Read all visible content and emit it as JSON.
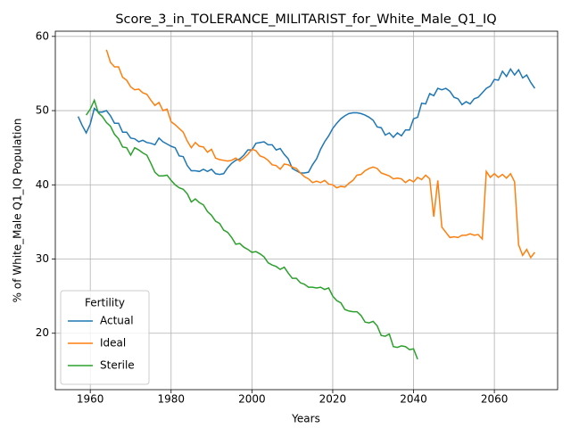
{
  "chart_data": {
    "type": "line",
    "title": "Score_3_in_TOLERANCE_MILITARIST_for_White_Male_Q1_IQ",
    "x_label": "Years",
    "y_label": "% of White_Male Q1_IQ Population",
    "legend_title": "Fertility",
    "legend_position": "lower left",
    "grid": true,
    "x": [
      1957,
      1958,
      1959,
      1960,
      1961,
      1962,
      1963,
      1964,
      1965,
      1966,
      1967,
      1968,
      1969,
      1970,
      1971,
      1972,
      1973,
      1974,
      1975,
      1976,
      1977,
      1978,
      1979,
      1980,
      1981,
      1982,
      1983,
      1984,
      1985,
      1986,
      1987,
      1988,
      1989,
      1990,
      1991,
      1992,
      1993,
      1994,
      1995,
      1996,
      1997,
      1998,
      1999,
      2000,
      2001,
      2002,
      2003,
      2004,
      2005,
      2006,
      2007,
      2008,
      2009,
      2010,
      2011,
      2012,
      2013,
      2014,
      2015,
      2016,
      2017,
      2018,
      2019,
      2020,
      2021,
      2022,
      2023,
      2024,
      2025,
      2026,
      2027,
      2028,
      2029,
      2030,
      2031,
      2032,
      2033,
      2034,
      2035,
      2036,
      2037,
      2038,
      2039,
      2040,
      2041,
      2042,
      2043,
      2044,
      2045,
      2046,
      2047,
      2048,
      2049,
      2050,
      2051,
      2052,
      2053,
      2054,
      2055,
      2056,
      2057,
      2058,
      2059,
      2060,
      2061,
      2062,
      2063,
      2064,
      2065,
      2066,
      2067,
      2068,
      2069,
      2070
    ],
    "series": [
      {
        "name": "Actual",
        "color": "#1f77b4",
        "values": [
          49.2,
          48,
          47,
          48.2,
          50.3,
          49.8,
          49.8,
          50,
          49.3,
          48.3,
          48.3,
          47.1,
          47.1,
          46.3,
          46.2,
          45.8,
          46,
          45.7,
          45.6,
          45.4,
          46.3,
          45.8,
          45.5,
          45.2,
          45,
          43.9,
          43.8,
          42.6,
          41.9,
          41.9,
          41.8,
          42.1,
          41.8,
          42.1,
          41.5,
          41.4,
          41.5,
          42.3,
          42.9,
          43.3,
          43.5,
          44,
          44.7,
          44.7,
          45.6,
          45.7,
          45.8,
          45.4,
          45.4,
          44.7,
          44.9,
          44.1,
          43.5,
          42.2,
          41.9,
          41.6,
          41.6,
          41.7,
          42.7,
          43.5,
          44.8,
          45.8,
          46.6,
          47.6,
          48.3,
          48.9,
          49.3,
          49.6,
          49.7,
          49.7,
          49.6,
          49.4,
          49.1,
          48.7,
          47.8,
          47.7,
          46.7,
          47,
          46.4,
          47,
          46.6,
          47.4,
          47.4,
          48.9,
          49.1,
          51,
          50.9,
          52.3,
          52,
          53,
          52.8,
          53,
          52.6,
          51.8,
          51.6,
          50.8,
          51.2,
          50.9,
          51.6,
          51.8,
          52.4,
          53,
          53.3,
          54.2,
          54.1,
          55.3,
          54.6,
          55.6,
          54.8,
          55.5,
          54.4,
          54.8,
          53.8,
          53
        ]
      },
      {
        "name": "Ideal",
        "color": "#ff7f0e",
        "values": [
          null,
          null,
          null,
          null,
          null,
          null,
          null,
          58.2,
          56.5,
          55.9,
          55.9,
          54.5,
          54.1,
          53.2,
          52.8,
          52.9,
          52.4,
          52.2,
          51.4,
          50.7,
          51.1,
          50,
          50.2,
          48.5,
          48.1,
          47.6,
          47.1,
          45.9,
          45,
          45.7,
          45.2,
          45.1,
          44.4,
          44.8,
          43.6,
          43.4,
          43.3,
          43.2,
          43.3,
          43.6,
          43.2,
          43.6,
          44.1,
          44.8,
          44.6,
          43.9,
          43.7,
          43.3,
          42.7,
          42.6,
          42.1,
          42.8,
          42.7,
          42.4,
          42.2,
          41.6,
          41.1,
          40.8,
          40.3,
          40.5,
          40.3,
          40.6,
          40.1,
          40,
          39.6,
          39.8,
          39.7,
          40.2,
          40.6,
          41.3,
          41.4,
          41.9,
          42.2,
          42.4,
          42.2,
          41.6,
          41.4,
          41.2,
          40.8,
          40.9,
          40.8,
          40.3,
          40.7,
          40.4,
          41,
          40.7,
          41.3,
          40.8,
          35.7,
          40.6,
          34.3,
          33.6,
          32.9,
          33,
          32.9,
          33.2,
          33.2,
          33.4,
          33.2,
          33.3,
          32.7,
          41.8,
          41,
          41.5,
          41,
          41.4,
          40.9,
          41.5,
          40.4,
          31.9,
          30.5,
          31.3,
          30.2,
          30.9
        ]
      },
      {
        "name": "Sterile",
        "color": "#2ca02c",
        "values": [
          null,
          null,
          49.4,
          50.2,
          51.4,
          49.7,
          49.2,
          48.4,
          47.9,
          46.8,
          46.2,
          45.1,
          45,
          44,
          45,
          44.7,
          44.3,
          44,
          42.9,
          41.7,
          41.2,
          41.2,
          41.3,
          40.6,
          40,
          39.6,
          39.4,
          38.8,
          37.7,
          38.1,
          37.6,
          37.3,
          36.4,
          35.9,
          35.1,
          34.8,
          33.9,
          33.6,
          32.9,
          32,
          32.1,
          31.6,
          31.3,
          30.9,
          31,
          30.7,
          30.3,
          29.5,
          29.2,
          29,
          28.6,
          28.9,
          28.1,
          27.4,
          27.4,
          26.8,
          26.6,
          26.2,
          26.2,
          26.1,
          26.2,
          25.9,
          26.1,
          25,
          24.4,
          24.1,
          23.2,
          23,
          22.9,
          22.9,
          22.4,
          21.5,
          21.4,
          21.6,
          21,
          19.7,
          19.6,
          19.9,
          18.2,
          18.1,
          18.3,
          18.2,
          17.8,
          17.9,
          16.5,
          null,
          null,
          null,
          null,
          null,
          null,
          null,
          null,
          null,
          null,
          null,
          null,
          null,
          null,
          null,
          null,
          null,
          null,
          null,
          null,
          null,
          null,
          null,
          null,
          null,
          null,
          null,
          null,
          null
        ]
      }
    ],
    "xlim": [
      1951.35,
      2075.65
    ],
    "xticks": [
      1960,
      1980,
      2000,
      2020,
      2040,
      2060
    ],
    "ylim": [
      12.4,
      60.7
    ],
    "yticks": [
      20,
      30,
      40,
      50,
      60
    ]
  }
}
